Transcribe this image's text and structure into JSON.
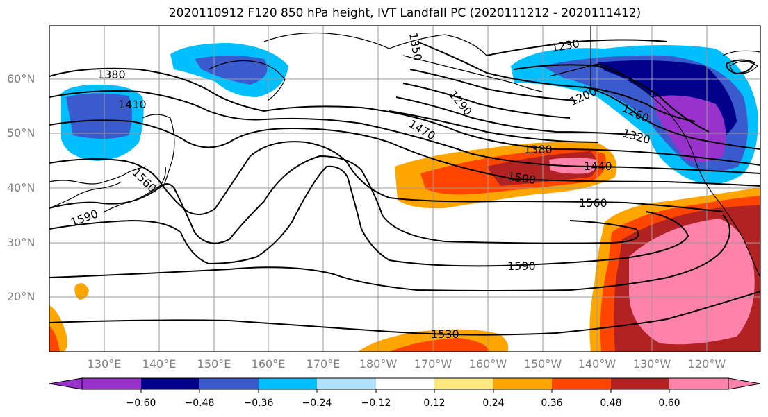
{
  "title": "2020110912 F120 850 hPa height, IVT Landfall PC (2020111212 - 2020111412)",
  "lat_labels": [
    "60°N",
    "50°N",
    "40°N",
    "30°N",
    "20°N"
  ],
  "lon_labels": [
    "130°E",
    "140°E",
    "150°E",
    "160°E",
    "170°E",
    "180°W",
    "170°W",
    "160°W",
    "150°W",
    "140°W",
    "130°W",
    "120°W"
  ],
  "contour_labels": [
    "1380",
    "1410",
    "1350",
    "1230",
    "1200",
    "1290",
    "1470",
    "1380",
    "1440",
    "1500",
    "1260",
    "1320",
    "1560",
    "1590",
    "1560",
    "1590",
    "1530"
  ],
  "colorbar": {
    "ticks": [
      "−0.60",
      "−0.48",
      "−0.36",
      "−0.24",
      "−0.12",
      "0.12",
      "0.24",
      "0.36",
      "0.48",
      "0.60"
    ],
    "colors": [
      "#9932cc",
      "#00008b",
      "#3a5bcd",
      "#00bfff",
      "#b0e2ff",
      "#ffffff",
      "#ffe97f",
      "#ffa500",
      "#ff4500",
      "#b22222",
      "#ff82ab"
    ]
  }
}
